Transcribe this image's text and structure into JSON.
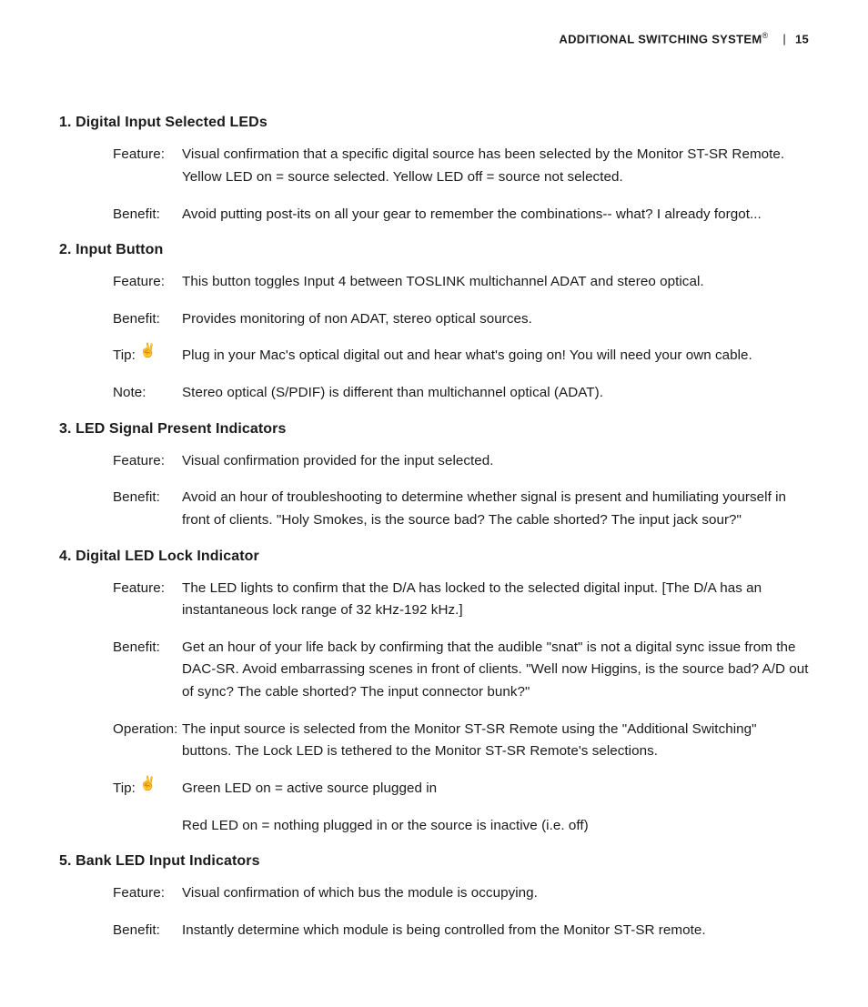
{
  "header": {
    "title": "ADDITIONAL SWITCHING SYSTEM",
    "sup": "®",
    "sep": "|",
    "page": "15"
  },
  "sections": [
    {
      "heading": "1. Digital Input Selected LEDs",
      "rows": [
        {
          "label": "Feature:",
          "content": "Visual confirmation that a specific digital source has been selected by the Monitor ST-SR Remote.    Yellow LED on = source selected.   Yellow LED off = source not selected."
        },
        {
          "label": "Benefit:",
          "content": "Avoid putting post-its on all your gear to remember the combinations-- what?  I already forgot..."
        }
      ]
    },
    {
      "heading": "2. Input Button",
      "rows": [
        {
          "label": "Feature:",
          "content": "This button toggles Input 4 between TOSLINK multichannel ADAT and stereo optical."
        },
        {
          "label": "Benefit:",
          "content": "Provides monitoring of non ADAT, stereo optical sources."
        },
        {
          "label": "Tip:",
          "icon": "tip-hand-icon",
          "content": "Plug in your Mac's optical digital out and hear what's going on!  You will need your own cable."
        },
        {
          "label": "Note:",
          "content": "Stereo optical (S/PDIF) is different than multichannel optical (ADAT)."
        }
      ]
    },
    {
      "heading": "3. LED Signal Present Indicators",
      "rows": [
        {
          "label": "Feature:",
          "content": "Visual confirmation provided for the input selected."
        },
        {
          "label": "Benefit:",
          "content": "Avoid an hour of troubleshooting to determine whether signal is present and humiliating yourself in front of clients.  \"Holy Smokes, is the source bad?  The cable shorted?  The input jack sour?\""
        }
      ]
    },
    {
      "heading": "4. Digital LED Lock Indicator",
      "rows": [
        {
          "label": "Feature:",
          "content": "The LED lights to confirm that the D/A has locked to the selected digital input.   [The D/A has an instantaneous lock range of 32 kHz-192 kHz.]"
        },
        {
          "label": "Benefit:",
          "content": "Get an hour of your life back by confirming that the audible \"snat\" is not a digital sync issue from the DAC-SR.  Avoid embarrassing scenes in front of clients.  \"Well now Higgins, is the source bad?  A/D out of sync?  The cable shorted?  The input connector bunk?\""
        },
        {
          "label": "Operation:",
          "content": "The input source is selected from the Monitor ST-SR Remote using the \"Additional Switching\" buttons.  The Lock LED is tethered to the Monitor ST-SR Remote's selections."
        },
        {
          "label": "Tip:",
          "icon": "tip-hand-icon",
          "content": "Green LED on = active source plugged in",
          "content_extra": "Red LED on = nothing plugged in or the source is inactive (i.e. off)"
        }
      ]
    },
    {
      "heading": "5. Bank LED Input Indicators",
      "rows": [
        {
          "label": "Feature:",
          "content": "Visual confirmation of which bus the module is occupying."
        },
        {
          "label": "Benefit:",
          "content": "Instantly determine which module is being controlled from the Monitor ST-SR remote."
        }
      ]
    }
  ],
  "icons": {
    "tip-hand-icon": "✌"
  }
}
